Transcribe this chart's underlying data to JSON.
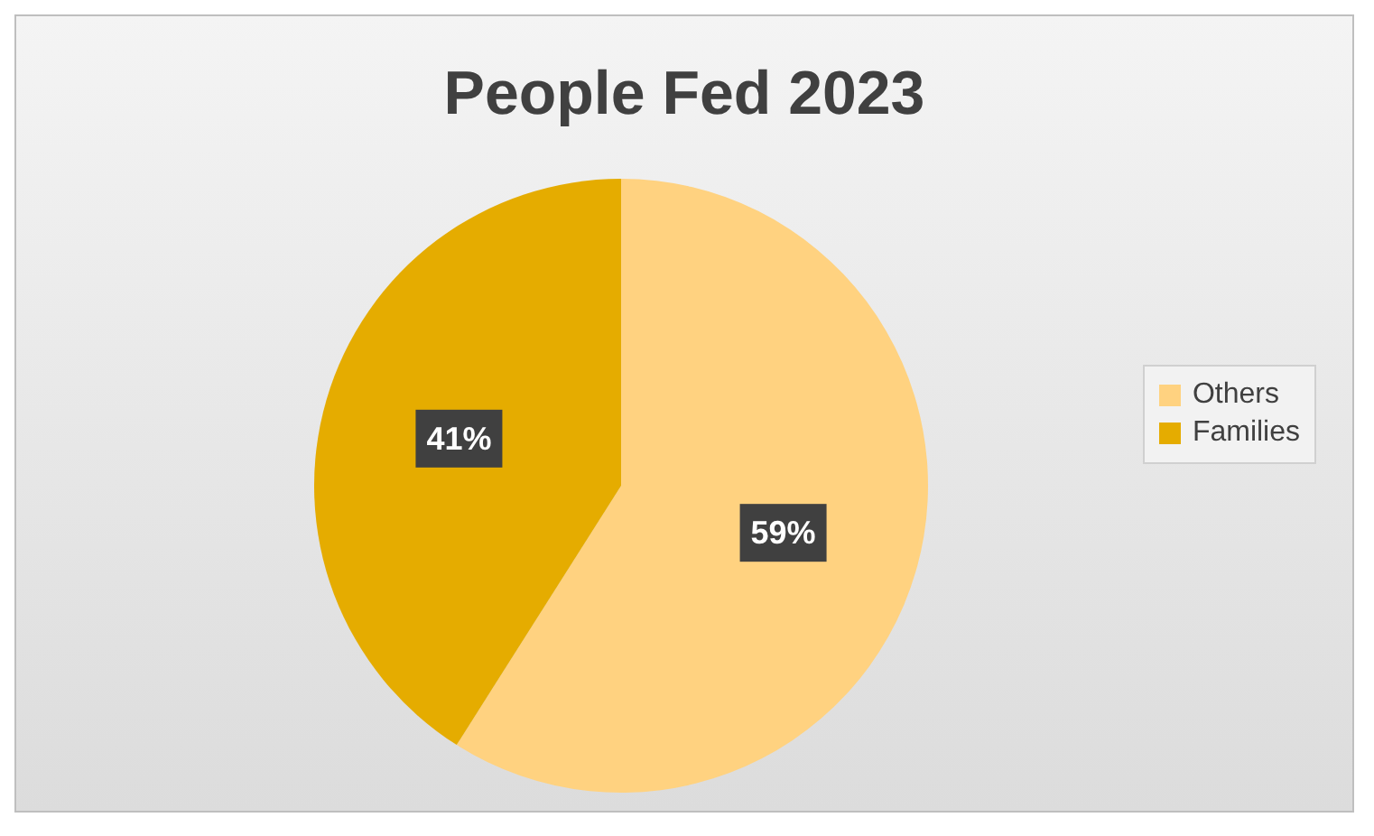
{
  "chart_data": {
    "type": "pie",
    "title": "People Fed 2023",
    "categories": [
      "Others",
      "Families"
    ],
    "values": [
      59,
      41
    ],
    "colors": [
      "#ffd280",
      "#e5ac00"
    ],
    "value_labels": [
      "59%",
      "41%"
    ],
    "legend": "right"
  }
}
